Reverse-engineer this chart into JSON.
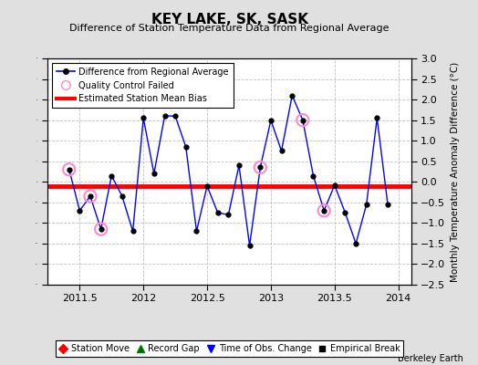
{
  "title": "KEY LAKE, SK, SASK",
  "subtitle": "Difference of Station Temperature Data from Regional Average",
  "ylabel": "Monthly Temperature Anomaly Difference (°C)",
  "xlabel_credit": "Berkeley Earth",
  "xlim": [
    2011.25,
    2014.1
  ],
  "ylim": [
    -2.5,
    3.0
  ],
  "yticks": [
    -2.5,
    -2,
    -1.5,
    -1,
    -0.5,
    0,
    0.5,
    1,
    1.5,
    2,
    2.5,
    3
  ],
  "xticks": [
    2011.5,
    2012,
    2012.5,
    2013,
    2013.5,
    2014
  ],
  "xtick_labels": [
    "2011.5",
    "2012",
    "2012.5",
    "2013",
    "2013.5",
    "2014"
  ],
  "bias_value": -0.1,
  "line_color": "#0000ff",
  "line_marker_color": "#000000",
  "qc_color": "#ff88cc",
  "bias_color": "#ff0000",
  "bg_color": "#e0e0e0",
  "plot_bg_color": "#ffffff",
  "grid_color": "#c0c0c0",
  "data_x": [
    2011.417,
    2011.5,
    2011.583,
    2011.667,
    2011.75,
    2011.833,
    2011.917,
    2012.0,
    2012.083,
    2012.167,
    2012.25,
    2012.333,
    2012.417,
    2012.5,
    2012.583,
    2012.667,
    2012.75,
    2012.833,
    2012.917,
    2013.0,
    2013.083,
    2013.167,
    2013.25,
    2013.333,
    2013.417,
    2013.5,
    2013.583,
    2013.667,
    2013.75,
    2013.833,
    2013.917
  ],
  "data_y": [
    0.3,
    -0.7,
    -0.35,
    -1.15,
    0.15,
    -0.35,
    -1.2,
    1.55,
    0.2,
    1.6,
    1.6,
    0.85,
    -1.2,
    -0.1,
    -0.75,
    -0.8,
    0.4,
    -1.55,
    0.35,
    1.5,
    0.75,
    2.1,
    1.5,
    0.15,
    -0.7,
    -0.08,
    -0.75,
    -1.5,
    -0.55,
    1.55,
    -0.55
  ],
  "qc_x": [
    2011.417,
    2011.583,
    2011.667,
    2012.917,
    2013.25,
    2013.417
  ],
  "qc_y": [
    0.3,
    -0.35,
    -1.15,
    0.35,
    1.5,
    -0.7
  ]
}
